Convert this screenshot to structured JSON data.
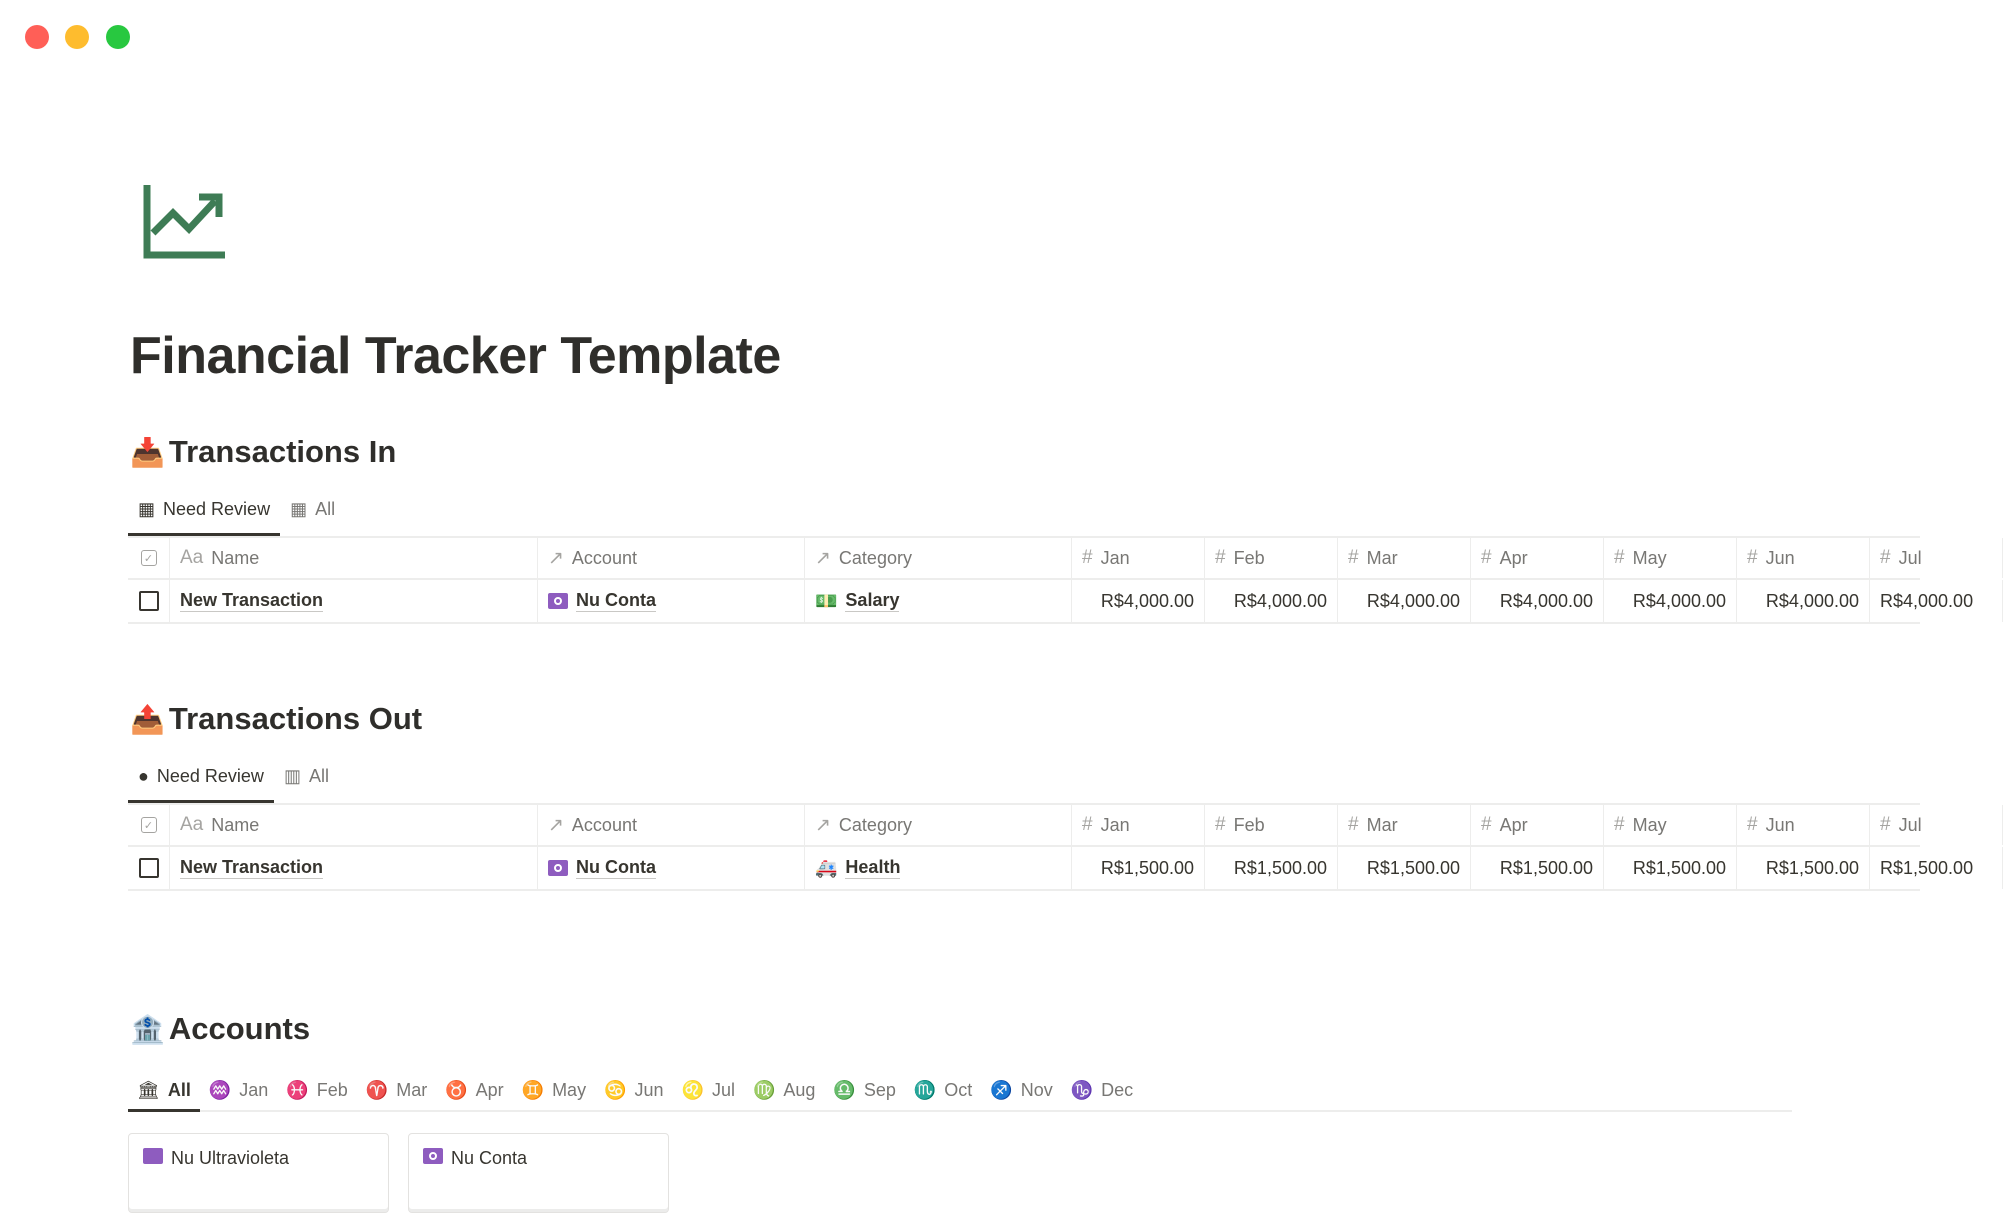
{
  "window": {
    "controls": {
      "close": "#ff5f57",
      "minimize": "#febc2e",
      "maximize": "#28c840"
    }
  },
  "page": {
    "icon": "chart-increasing-icon",
    "icon_color": "#3e7c55",
    "title": "Financial Tracker Template"
  },
  "transactions_in": {
    "heading": "Transactions In",
    "emoji": "📥",
    "tabs": [
      {
        "label": "Need Review",
        "icon": "table-icon",
        "active": true
      },
      {
        "label": "All",
        "icon": "table-icon",
        "active": false
      }
    ],
    "columns": {
      "name": "Name",
      "name_prefix": "Aa",
      "account": "Account",
      "category": "Category",
      "months": [
        "Jan",
        "Feb",
        "Mar",
        "Apr",
        "May",
        "Jun",
        "Jul"
      ]
    },
    "rows": [
      {
        "name": "New Transaction",
        "account": "Nu Conta",
        "category": "Salary",
        "category_emoji": "💵",
        "values": [
          "R$4,000.00",
          "R$4,000.00",
          "R$4,000.00",
          "R$4,000.00",
          "R$4,000.00",
          "R$4,000.00",
          "R$4,000.00"
        ]
      }
    ]
  },
  "transactions_out": {
    "heading": "Transactions Out",
    "emoji": "📤",
    "tabs": [
      {
        "label": "Need Review",
        "icon": "check-circle-icon",
        "active": true
      },
      {
        "label": "All",
        "icon": "barcode-icon",
        "active": false
      }
    ],
    "columns": {
      "name": "Name",
      "name_prefix": "Aa",
      "account": "Account",
      "category": "Category",
      "months": [
        "Jan",
        "Feb",
        "Mar",
        "Apr",
        "May",
        "Jun",
        "Jul"
      ]
    },
    "rows": [
      {
        "name": "New Transaction",
        "account": "Nu Conta",
        "category": "Health",
        "category_emoji": "🚑",
        "values": [
          "R$1,500.00",
          "R$1,500.00",
          "R$1,500.00",
          "R$1,500.00",
          "R$1,500.00",
          "R$1,500.00",
          "R$1,500.00"
        ]
      }
    ]
  },
  "accounts": {
    "heading": "Accounts",
    "emoji": "🏦",
    "tabs": [
      {
        "label": "All",
        "glyph": "🏛"
      },
      {
        "label": "Jan",
        "glyph": "♒"
      },
      {
        "label": "Feb",
        "glyph": "♓"
      },
      {
        "label": "Mar",
        "glyph": "♈"
      },
      {
        "label": "Apr",
        "glyph": "♉"
      },
      {
        "label": "May",
        "glyph": "♊"
      },
      {
        "label": "Jun",
        "glyph": "♋"
      },
      {
        "label": "Jul",
        "glyph": "♌"
      },
      {
        "label": "Aug",
        "glyph": "♍"
      },
      {
        "label": "Sep",
        "glyph": "♎"
      },
      {
        "label": "Oct",
        "glyph": "♏"
      },
      {
        "label": "Nov",
        "glyph": "♐"
      },
      {
        "label": "Dec",
        "glyph": "♑"
      }
    ],
    "cards": [
      {
        "name": "Nu Ultravioleta",
        "icon": "credit-card-icon"
      },
      {
        "name": "Nu Conta",
        "icon": "money-icon"
      }
    ]
  }
}
